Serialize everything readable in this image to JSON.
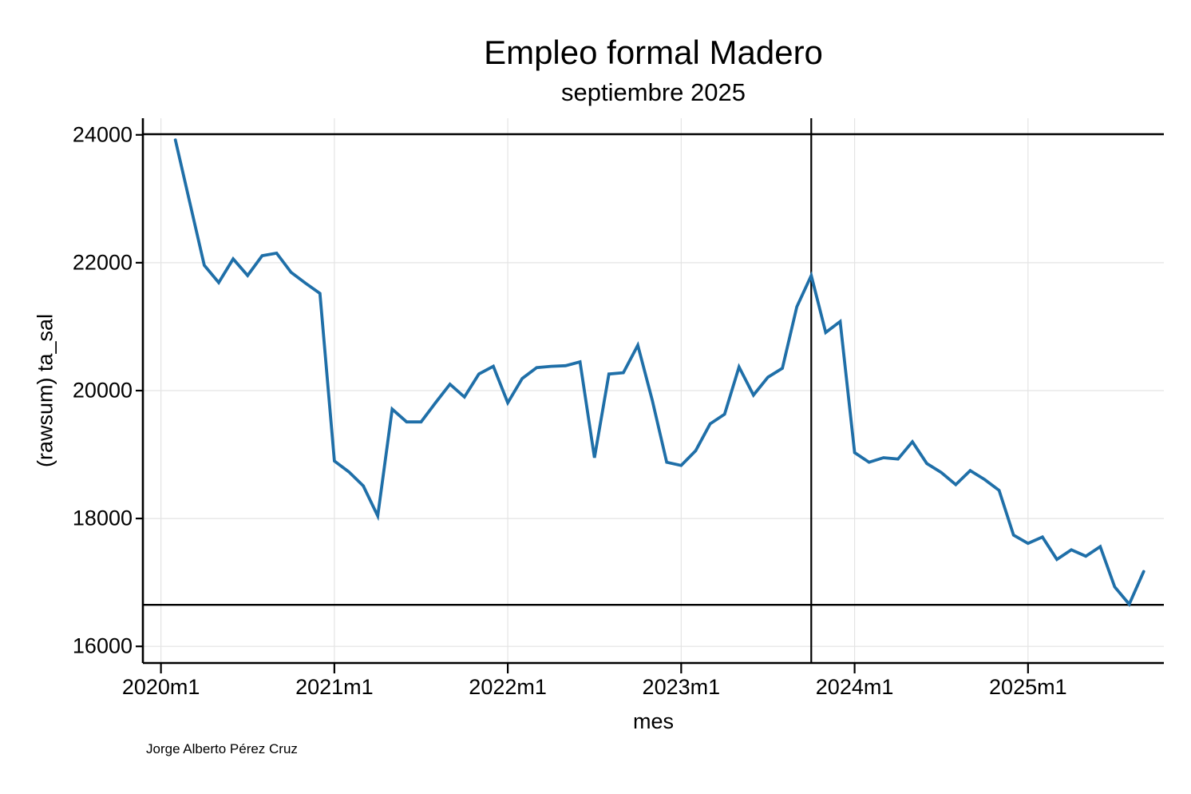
{
  "header": {
    "title": "Empleo formal Madero",
    "subtitle": "septiembre 2025"
  },
  "axes": {
    "x_title": "mes",
    "y_title": "(rawsum) ta_sal"
  },
  "caption": "Jorge Alberto Pérez Cruz",
  "chart_data": {
    "type": "line",
    "title": "Empleo formal Madero",
    "subtitle": "septiembre 2025",
    "xlabel": "mes",
    "ylabel": "(rawsum) ta_sal",
    "x": [
      "2020m2",
      "2020m3",
      "2020m4",
      "2020m5",
      "2020m6",
      "2020m7",
      "2020m8",
      "2020m9",
      "2020m10",
      "2020m11",
      "2020m12",
      "2021m1",
      "2021m2",
      "2021m3",
      "2021m4",
      "2021m5",
      "2021m6",
      "2021m7",
      "2021m8",
      "2021m9",
      "2021m10",
      "2021m11",
      "2021m12",
      "2022m1",
      "2022m2",
      "2022m3",
      "2022m4",
      "2022m5",
      "2022m6",
      "2022m7",
      "2022m8",
      "2022m9",
      "2022m10",
      "2022m11",
      "2022m12",
      "2023m1",
      "2023m2",
      "2023m3",
      "2023m4",
      "2023m5",
      "2023m6",
      "2023m7",
      "2023m8",
      "2023m9",
      "2023m10",
      "2023m11",
      "2023m12",
      "2024m1",
      "2024m2",
      "2024m3",
      "2024m4",
      "2024m5",
      "2024m6",
      "2024m7",
      "2024m8",
      "2024m9",
      "2024m10",
      "2024m11",
      "2024m12",
      "2025m1",
      "2025m2",
      "2025m3",
      "2025m4",
      "2025m5",
      "2025m6",
      "2025m7",
      "2025m8",
      "2025m9"
    ],
    "values": [
      23920,
      22940,
      21960,
      21690,
      22060,
      21800,
      22110,
      22150,
      21850,
      21680,
      21520,
      18900,
      18730,
      18510,
      18040,
      19710,
      19510,
      19510,
      19810,
      20100,
      19900,
      20260,
      20380,
      19810,
      20190,
      20360,
      20380,
      20390,
      20450,
      18950,
      20260,
      20280,
      20710,
      19850,
      18880,
      18830,
      19060,
      19480,
      19630,
      20370,
      19930,
      20210,
      20350,
      21310,
      21800,
      20910,
      21080,
      19030,
      18880,
      18950,
      18930,
      19200,
      18860,
      18720,
      18530,
      18750,
      18610,
      18440,
      17740,
      17610,
      17710,
      17360,
      17510,
      17410,
      17560,
      16930,
      16660,
      17170
    ],
    "y_ticks": [
      16000,
      18000,
      20000,
      22000,
      24000
    ],
    "x_ticks": [
      "2020m1",
      "2021m1",
      "2022m1",
      "2023m1",
      "2024m1",
      "2025m1"
    ],
    "ylim": [
      15740,
      24260
    ],
    "grid": true,
    "legend": "none",
    "ref_lines_y": [
      24010,
      16650
    ],
    "ref_line_x": "2023m10",
    "line_color": "#1f6fa8",
    "grid_color": "#e4e4e4",
    "ref_color": "#000000",
    "axis_color": "#000000"
  }
}
